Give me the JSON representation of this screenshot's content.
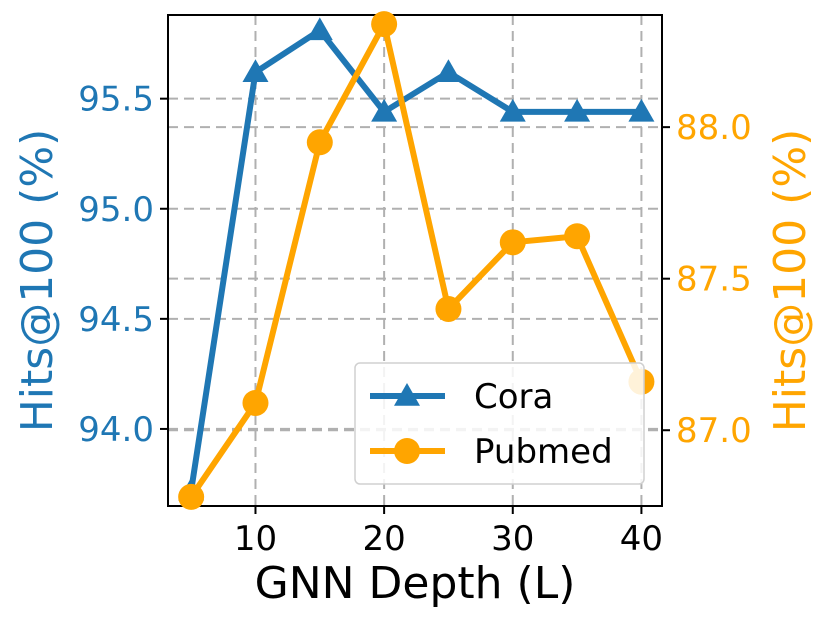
{
  "chart_data": {
    "type": "line",
    "x": [
      5,
      10,
      15,
      20,
      25,
      30,
      35,
      40
    ],
    "xlabel": "GNN Depth (L)",
    "xlim": [
      3.2,
      41.6
    ],
    "xticks": [
      10,
      20,
      30,
      40
    ],
    "grid": true,
    "legend_position": "lower-right",
    "colors": {
      "cora": "#1f77b4",
      "pubmed": "#ffa500"
    },
    "axes": {
      "left": {
        "label": "Hits@100 (%)",
        "ylim": [
          93.65,
          95.88
        ],
        "ticks": [
          94.0,
          94.5,
          95.0,
          95.5
        ],
        "tick_labels": [
          "94.0",
          "94.5",
          "95.0",
          "95.5"
        ]
      },
      "right": {
        "label": "Hits@100 (%)",
        "ylim": [
          86.75,
          88.37
        ],
        "ticks": [
          87.0,
          87.5,
          88.0
        ],
        "tick_labels": [
          "87.0",
          "87.5",
          "88.0"
        ]
      }
    },
    "series": [
      {
        "name": "Cora",
        "axis": "left",
        "marker": "triangle",
        "color": "#1f77b4",
        "values": [
          93.72,
          95.62,
          95.81,
          95.44,
          95.62,
          95.44,
          95.44,
          95.44
        ]
      },
      {
        "name": "Pubmed",
        "axis": "right",
        "marker": "circle",
        "color": "#ffa500",
        "values": [
          86.78,
          87.09,
          87.95,
          88.34,
          87.4,
          87.62,
          87.64,
          87.16
        ]
      }
    ]
  }
}
